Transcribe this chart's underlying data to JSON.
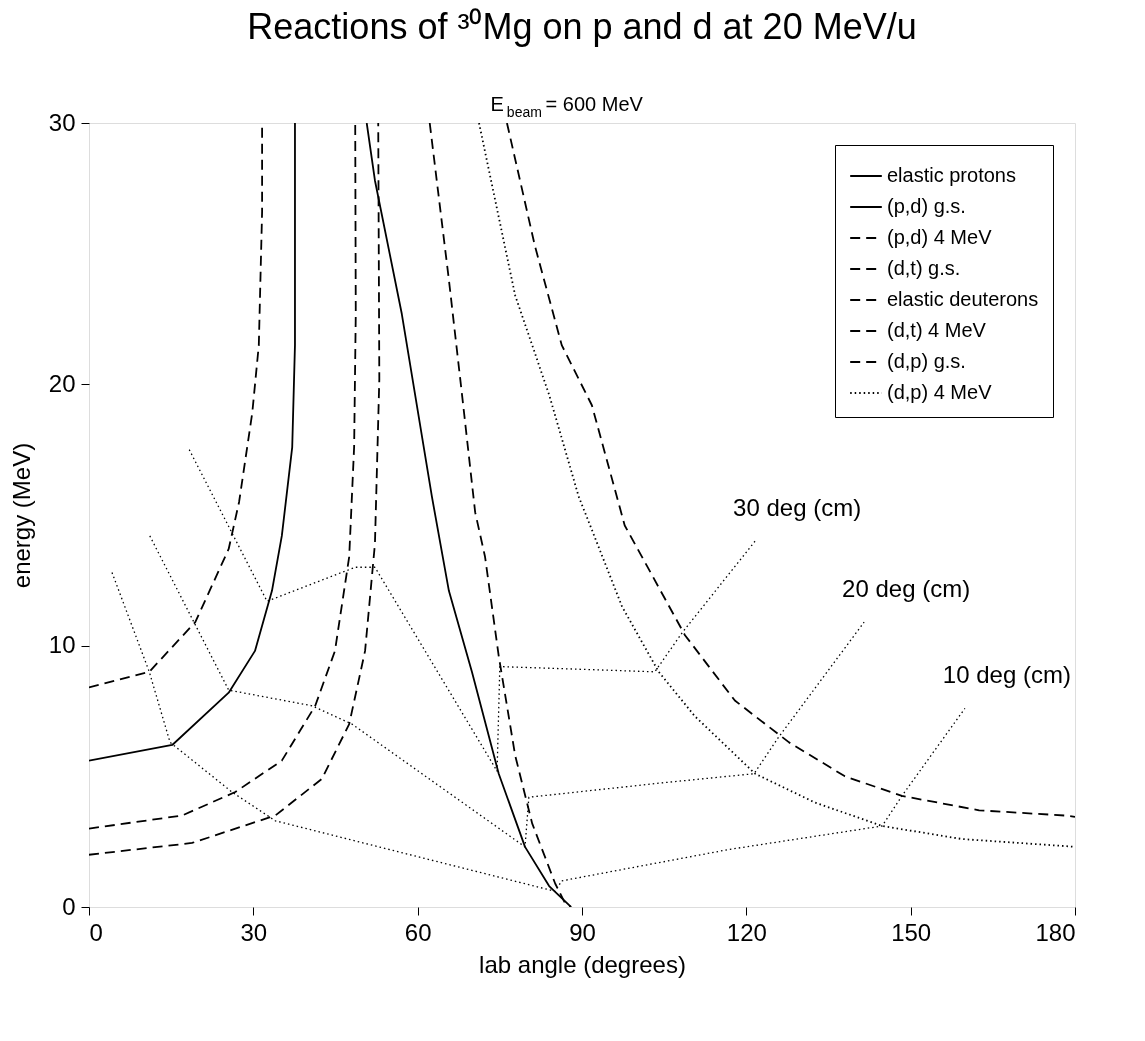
{
  "chart_data": {
    "type": "line",
    "title": "Reactions of ³⁰Mg on p and d at 20 MeV/u",
    "subtitle": "E$_{beam}$ = 600 MeV",
    "xlabel": "lab angle (degrees)",
    "ylabel": "energy (MeV)",
    "xlim": [
      0,
      180
    ],
    "ylim": [
      0,
      30
    ],
    "xticks": [
      0,
      30,
      60,
      90,
      120,
      150,
      180
    ],
    "yticks": [
      0,
      10,
      20,
      30
    ],
    "grid": false,
    "legend": "top right",
    "marker": "none",
    "series": [
      {
        "name": "elastic protons",
        "color": "#000000",
        "line_style": "solid",
        "x": [
          50.7,
          52.2,
          57.1,
          62.6,
          65.7,
          69.9,
          74.8,
          79.6,
          84,
          87.6,
          88
        ],
        "values": [
          30,
          27.8,
          22.7,
          15.7,
          12.1,
          9.0,
          5.1,
          2.3,
          0.8,
          0.08,
          0
        ]
      },
      {
        "name": "(p,d) g.s.",
        "color": "#000000",
        "line_style": "solid",
        "x": [
          0,
          15.2,
          25.5,
          30.3,
          33.4,
          35.2,
          37.1,
          37.6,
          37.6
        ],
        "values": [
          5.6,
          6.2,
          8.2,
          9.8,
          12.1,
          14.2,
          17.6,
          21.5,
          30
        ]
      },
      {
        "name": "(p,d) 4 MeV",
        "color": "#000000",
        "line_style": "dashed",
        "x": [
          0,
          11,
          19.4,
          25.5,
          27.4,
          29.8,
          31,
          31.6,
          31.6
        ],
        "values": [
          8.4,
          9.0,
          10.9,
          13.7,
          15.5,
          18.9,
          21.5,
          26.6,
          30
        ]
      },
      {
        "name": "(d,t) g.s.",
        "color": "#000000",
        "line_style": "dashed",
        "x": [
          0,
          18.8,
          34,
          42.5,
          47.5,
          50.4,
          52.2,
          53,
          52.8
        ],
        "values": [
          2.0,
          2.45,
          3.5,
          4.9,
          7.0,
          9.8,
          13.9,
          20.2,
          30
        ]
      },
      {
        "name": "elastic deuterons",
        "color": "#000000",
        "line_style": "dashed",
        "x": [
          62.2,
          65.7,
          68.1,
          70.5,
          72.3,
          74.8,
          77.8,
          80.9,
          85.1,
          86.9,
          88
        ],
        "values": [
          30,
          24.0,
          19.6,
          15.1,
          13.4,
          9.6,
          5.8,
          3.2,
          0.9,
          0.15,
          0
        ]
      },
      {
        "name": "(d,t) 4 MeV",
        "color": "#000000",
        "line_style": "dashed",
        "x": [
          0,
          17,
          26.7,
          35.2,
          41.3,
          44.9,
          47.5,
          48.4,
          48.7,
          48.6
        ],
        "values": [
          3.0,
          3.5,
          4.4,
          5.6,
          7.7,
          9.8,
          13.4,
          17.6,
          22.7,
          30
        ]
      },
      {
        "name": "(d,p) g.s.",
        "color": "#000000",
        "line_style": "dashed",
        "x": [
          76.3,
          81.4,
          86.3,
          91.8,
          97.8,
          108.8,
          117.9,
          127.8,
          138,
          148.4,
          162.5,
          178.2,
          180
        ],
        "values": [
          30,
          25.3,
          21.5,
          19.2,
          14.6,
          10.4,
          7.9,
          6.3,
          5.0,
          4.25,
          3.7,
          3.5,
          3.45
        ]
      },
      {
        "name": "(d,p) 4 MeV",
        "color": "#000000",
        "line_style": "dotted",
        "x": [
          71.2,
          77.8,
          84,
          89.4,
          91.3,
          97.3,
          104,
          110.6,
          121.6,
          132.5,
          144.8,
          159.4,
          178.2,
          180
        ],
        "values": [
          30,
          23.4,
          19.6,
          15.7,
          14.7,
          11.5,
          9.0,
          7.3,
          5.1,
          4.0,
          3.1,
          2.6,
          2.33,
          2.3
        ]
      },
      {
        "color": "#000000",
        "line_style": "dotted",
        "x": [
          18.3,
          32.5,
          48.6,
          52.2,
          74.5,
          75,
          103.3,
          108.3,
          121.6
        ],
        "values": [
          17.5,
          11.7,
          13.0,
          13.0,
          5.2,
          9.2,
          9.0,
          10.5,
          14.0
        ]
      },
      {
        "color": "#000000",
        "line_style": "dotted",
        "x": [
          11.1,
          25.5,
          40.7,
          48,
          79.6,
          80.3,
          104.6,
          121.4,
          125.9,
          141.5
        ],
        "values": [
          14.2,
          8.3,
          7.7,
          7.0,
          2.3,
          4.2,
          4.75,
          5.1,
          6.5,
          10.9
        ]
      },
      {
        "color": "#000000",
        "line_style": "dotted",
        "x": [
          4.2,
          11,
          14.8,
          26.1,
          34,
          85.1,
          86.3,
          116.8,
          144.8,
          148.4,
          159.9
        ],
        "values": [
          12.8,
          9.0,
          6.3,
          4.4,
          3.3,
          0.6,
          1.0,
          2.2,
          3.1,
          4.25,
          7.6
        ]
      }
    ],
    "annotations": [
      "30 deg (cm)",
      "20 deg (cm)",
      "10 deg (cm)"
    ]
  }
}
